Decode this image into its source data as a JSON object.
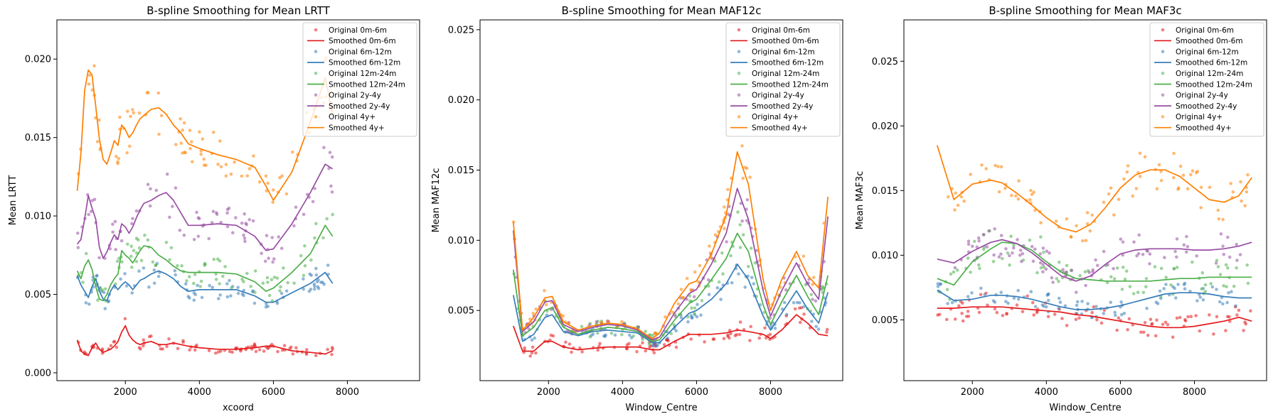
{
  "colors": {
    "0m-6m": "#e41a1c",
    "6m-12m": "#377eb8",
    "12m-24m": "#4daf4a",
    "2y-4y": "#984ea3",
    "4y+": "#ff7f00"
  },
  "legend": [
    "Original 0m-6m",
    "Smoothed 0m-6m",
    "Original 6m-12m",
    "Smoothed 6m-12m",
    "Original 12m-24m",
    "Smoothed 12m-24m",
    "Original 2y-4y",
    "Smoothed 2y-4y",
    "Original 4y+",
    "Smoothed 4y+"
  ],
  "chart_data": [
    {
      "type": "scatter",
      "title": "B-spline Smoothing for Mean LRTT",
      "xlabel": "xcoord",
      "ylabel": "Mean LRTT",
      "xlim": [
        150,
        9950
      ],
      "ylim": [
        -0.0005,
        0.0225
      ],
      "xticks": [
        2000,
        4000,
        6000,
        8000
      ],
      "xtick_labels": [
        "2000",
        "4000",
        "6000",
        "8000"
      ],
      "yticks": [
        0.0,
        0.005,
        0.01,
        0.015,
        0.02
      ],
      "ytick_labels": [
        "0.000",
        "0.005",
        "0.010",
        "0.015",
        "0.020"
      ],
      "legend_position": "top-right",
      "x": [
        700,
        800,
        900,
        1000,
        1100,
        1200,
        1300,
        1400,
        1500,
        1600,
        1700,
        1800,
        1900,
        2000,
        2100,
        2200,
        2300,
        2400,
        2500,
        2700,
        2900,
        3100,
        3300,
        3500,
        3700,
        4000,
        4500,
        5000,
        5500,
        5800,
        6000,
        6500,
        7000,
        7400,
        7600
      ],
      "series": [
        {
          "name": "0m-6m",
          "values": [
            0.0021,
            0.0014,
            0.0012,
            0.0011,
            0.0016,
            0.0019,
            0.0015,
            0.0013,
            0.0014,
            0.0015,
            0.0017,
            0.002,
            0.0026,
            0.003,
            0.0024,
            0.0021,
            0.0019,
            0.0018,
            0.0019,
            0.002,
            0.0018,
            0.0018,
            0.0019,
            0.0018,
            0.0017,
            0.0016,
            0.0015,
            0.0015,
            0.0016,
            0.0017,
            0.0017,
            0.0014,
            0.0013,
            0.0012,
            0.0014
          ]
        },
        {
          "name": "6m-12m",
          "values": [
            0.0062,
            0.0056,
            0.0052,
            0.0048,
            0.0055,
            0.006,
            0.0052,
            0.0047,
            0.0046,
            0.0052,
            0.0056,
            0.0053,
            0.0056,
            0.0058,
            0.0056,
            0.0053,
            0.0056,
            0.0059,
            0.006,
            0.0063,
            0.0065,
            0.0063,
            0.006,
            0.0055,
            0.0052,
            0.0053,
            0.0053,
            0.0053,
            0.0049,
            0.0045,
            0.0045,
            0.0051,
            0.0057,
            0.0064,
            0.0057
          ]
        },
        {
          "name": "12m-24m",
          "values": [
            0.0065,
            0.006,
            0.0068,
            0.0072,
            0.0066,
            0.0055,
            0.0047,
            0.0046,
            0.005,
            0.0056,
            0.006,
            0.0063,
            0.0078,
            0.0075,
            0.0073,
            0.007,
            0.0074,
            0.0078,
            0.0081,
            0.008,
            0.0075,
            0.0072,
            0.0068,
            0.0065,
            0.0064,
            0.0064,
            0.0064,
            0.0063,
            0.0058,
            0.0052,
            0.0054,
            0.0064,
            0.0076,
            0.0094,
            0.0087
          ]
        },
        {
          "name": "2y-4y",
          "values": [
            0.0082,
            0.0085,
            0.0098,
            0.0113,
            0.0105,
            0.0098,
            0.008,
            0.0073,
            0.0077,
            0.0083,
            0.0088,
            0.0085,
            0.0095,
            0.0093,
            0.0089,
            0.0093,
            0.0099,
            0.0104,
            0.0108,
            0.011,
            0.0113,
            0.0115,
            0.011,
            0.0102,
            0.0094,
            0.0094,
            0.0095,
            0.0094,
            0.0087,
            0.0078,
            0.0079,
            0.0095,
            0.0115,
            0.0133,
            0.013
          ]
        },
        {
          "name": "4y+",
          "values": [
            0.0116,
            0.014,
            0.018,
            0.0193,
            0.019,
            0.017,
            0.0149,
            0.0136,
            0.0133,
            0.014,
            0.0148,
            0.0145,
            0.0158,
            0.0155,
            0.015,
            0.0153,
            0.0158,
            0.0162,
            0.0164,
            0.0168,
            0.0169,
            0.0165,
            0.0158,
            0.0153,
            0.0146,
            0.0143,
            0.0139,
            0.0136,
            0.0131,
            0.0119,
            0.011,
            0.0128,
            0.016,
            0.0188,
            0.0165
          ]
        }
      ]
    },
    {
      "type": "scatter",
      "title": "B-spline Smoothing for Mean MAF12c",
      "xlabel": "Window_Centre",
      "ylabel": "Mean MAF12c",
      "xlim": [
        150,
        9950
      ],
      "ylim": [
        0.0,
        0.0257
      ],
      "xticks": [
        2000,
        4000,
        6000,
        8000
      ],
      "xtick_labels": [
        "2000",
        "4000",
        "6000",
        "8000"
      ],
      "yticks": [
        0.005,
        0.01,
        0.015,
        0.02,
        0.025
      ],
      "ytick_labels": [
        "0.005",
        "0.010",
        "0.015",
        "0.020",
        "0.025"
      ],
      "legend_position": "top-right",
      "x": [
        1050,
        1300,
        1600,
        1900,
        2100,
        2400,
        2800,
        3200,
        3600,
        4000,
        4400,
        4800,
        5000,
        5400,
        5800,
        6000,
        6400,
        6800,
        7100,
        7400,
        7800,
        8000,
        8300,
        8700,
        9000,
        9300,
        9550
      ],
      "series": [
        {
          "name": "0m-6m",
          "values": [
            0.0039,
            0.0021,
            0.0021,
            0.0028,
            0.0028,
            0.0024,
            0.0022,
            0.0023,
            0.0024,
            0.0024,
            0.0024,
            0.0022,
            0.0022,
            0.0028,
            0.0033,
            0.0033,
            0.0033,
            0.0034,
            0.0036,
            0.0035,
            0.0033,
            0.003,
            0.0036,
            0.0047,
            0.0041,
            0.0033,
            0.0032
          ]
        },
        {
          "name": "6m-12m",
          "values": [
            0.0061,
            0.0028,
            0.0033,
            0.0045,
            0.0047,
            0.0035,
            0.0032,
            0.0035,
            0.0036,
            0.0035,
            0.0034,
            0.0027,
            0.0027,
            0.0038,
            0.0048,
            0.005,
            0.0058,
            0.0069,
            0.0083,
            0.0072,
            0.0046,
            0.0036,
            0.0048,
            0.0064,
            0.0051,
            0.0041,
            0.0063
          ]
        },
        {
          "name": "12m-24m",
          "values": [
            0.0079,
            0.0032,
            0.0038,
            0.005,
            0.0052,
            0.0038,
            0.0033,
            0.0036,
            0.0038,
            0.0037,
            0.0035,
            0.0028,
            0.0029,
            0.0043,
            0.0055,
            0.0058,
            0.0072,
            0.0087,
            0.0105,
            0.0092,
            0.0054,
            0.004,
            0.0056,
            0.0075,
            0.006,
            0.0047,
            0.0075
          ]
        },
        {
          "name": "2y-4y",
          "values": [
            0.0107,
            0.0035,
            0.0042,
            0.0056,
            0.0057,
            0.004,
            0.0035,
            0.0038,
            0.004,
            0.0039,
            0.0036,
            0.0029,
            0.0031,
            0.0048,
            0.0062,
            0.0065,
            0.0083,
            0.0105,
            0.0137,
            0.0115,
            0.0064,
            0.0046,
            0.0064,
            0.0084,
            0.0069,
            0.0058,
            0.0117
          ]
        },
        {
          "name": "4y+",
          "values": [
            0.0113,
            0.0036,
            0.0045,
            0.0059,
            0.006,
            0.0042,
            0.0036,
            0.0039,
            0.0041,
            0.004,
            0.0037,
            0.003,
            0.0034,
            0.0055,
            0.0069,
            0.0071,
            0.009,
            0.0118,
            0.0163,
            0.014,
            0.0072,
            0.005,
            0.0072,
            0.0092,
            0.0075,
            0.0066,
            0.0131
          ]
        }
      ]
    },
    {
      "type": "scatter",
      "title": "B-spline Smoothing for Mean MAF3c",
      "xlabel": "Window_Centre",
      "ylabel": "Mean MAF3c",
      "xlim": [
        150,
        9950
      ],
      "ylim": [
        0.0003,
        0.0282
      ],
      "xticks": [
        2000,
        4000,
        6000,
        8000
      ],
      "xtick_labels": [
        "2000",
        "4000",
        "6000",
        "8000"
      ],
      "yticks": [
        0.005,
        0.01,
        0.015,
        0.02,
        0.025
      ],
      "ytick_labels": [
        "0.005",
        "0.010",
        "0.015",
        "0.020",
        "0.025"
      ],
      "legend_position": "top-right",
      "x": [
        1050,
        1500,
        2000,
        2500,
        2800,
        3200,
        3600,
        4000,
        4400,
        4800,
        5200,
        5600,
        6000,
        6400,
        6800,
        7200,
        7600,
        8000,
        8400,
        8800,
        9200,
        9550
      ],
      "series": [
        {
          "name": "0m-6m",
          "values": [
            0.0059,
            0.0059,
            0.006,
            0.006,
            0.006,
            0.0059,
            0.0058,
            0.0057,
            0.0056,
            0.0054,
            0.0053,
            0.0051,
            0.0049,
            0.0047,
            0.0045,
            0.0044,
            0.0044,
            0.0045,
            0.0047,
            0.0049,
            0.0052,
            0.0049
          ]
        },
        {
          "name": "6m-12m",
          "values": [
            0.0073,
            0.0065,
            0.0066,
            0.0069,
            0.0069,
            0.0068,
            0.0066,
            0.0063,
            0.006,
            0.0058,
            0.0058,
            0.0059,
            0.0061,
            0.0064,
            0.0067,
            0.007,
            0.0071,
            0.0071,
            0.007,
            0.0068,
            0.0067,
            0.0067
          ]
        },
        {
          "name": "12m-24m",
          "values": [
            0.0082,
            0.0077,
            0.0095,
            0.0105,
            0.011,
            0.0109,
            0.0104,
            0.0095,
            0.0087,
            0.0082,
            0.0081,
            0.008,
            0.008,
            0.008,
            0.008,
            0.0081,
            0.0082,
            0.0082,
            0.0083,
            0.0083,
            0.0083,
            0.0083
          ]
        },
        {
          "name": "2y-4y",
          "values": [
            0.0097,
            0.0094,
            0.0103,
            0.011,
            0.0112,
            0.0109,
            0.0102,
            0.0093,
            0.0084,
            0.008,
            0.0084,
            0.0093,
            0.0101,
            0.0104,
            0.0105,
            0.0105,
            0.0105,
            0.0104,
            0.0104,
            0.0105,
            0.0107,
            0.011
          ]
        },
        {
          "name": "4y+",
          "values": [
            0.0185,
            0.0143,
            0.0155,
            0.0158,
            0.0156,
            0.0148,
            0.0139,
            0.0129,
            0.0121,
            0.0118,
            0.0124,
            0.0137,
            0.0152,
            0.0162,
            0.0166,
            0.0166,
            0.0161,
            0.0152,
            0.0143,
            0.0141,
            0.0146,
            0.016
          ]
        }
      ]
    }
  ]
}
